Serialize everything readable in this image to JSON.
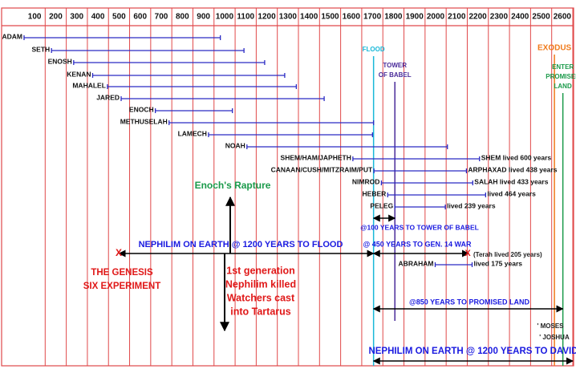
{
  "chart_data": {
    "type": "timeline",
    "xlim": [
      0,
      2600
    ],
    "xticks": [
      100,
      200,
      300,
      400,
      500,
      600,
      700,
      800,
      900,
      1000,
      1100,
      1200,
      1300,
      1400,
      1500,
      1600,
      1700,
      1800,
      1900,
      2000,
      2100,
      2200,
      2300,
      2400,
      2500,
      2600
    ],
    "grid": true,
    "grid_color": "#e0484a",
    "bar_color": "#2b2bc4",
    "lifespans": [
      {
        "name": "ADAM",
        "start": 0,
        "end": 930
      },
      {
        "name": "SETH",
        "start": 130,
        "end": 1042
      },
      {
        "name": "ENOSH",
        "start": 235,
        "end": 1140
      },
      {
        "name": "KENAN",
        "start": 325,
        "end": 1235
      },
      {
        "name": "MAHALEL",
        "start": 395,
        "end": 1290
      },
      {
        "name": "JARED",
        "start": 460,
        "end": 1422
      },
      {
        "name": "ENOCH",
        "start": 622,
        "end": 987
      },
      {
        "name": "METHUSELAH",
        "start": 687,
        "end": 1656
      },
      {
        "name": "LAMECH",
        "start": 874,
        "end": 1651
      },
      {
        "name": "NOAH",
        "start": 1056,
        "end": 2006
      },
      {
        "name": "SHEM/HAM/JAPHETH",
        "start": 1558,
        "end": 2158,
        "note": "SHEM lived 600 years"
      },
      {
        "name": "CANAAN/CUSH/MITZRAIM/PUT",
        "start": 1658,
        "end": 2096,
        "note": "ARPHAXAD lived 438 years"
      },
      {
        "name": "NIMROD",
        "start": 1693,
        "end": 2126,
        "note": "SALAH lived 433 years"
      },
      {
        "name": "HEBER",
        "start": 1723,
        "end": 2187,
        "note": "lived 464 years"
      },
      {
        "name": "PELEG",
        "start": 1757,
        "end": 1996,
        "note": "lived 239 years"
      },
      {
        "name": "ABRAHAM",
        "start": 1948,
        "end": 2123,
        "note": "lived 175 years"
      }
    ],
    "events": [
      {
        "label": [
          "FLOOD"
        ],
        "year": 1656,
        "color": "#19b8d8"
      },
      {
        "label": [
          "TOWER",
          "OF BABEL"
        ],
        "year": 1757,
        "color": "#4a2b9a"
      },
      {
        "label": [
          "EXODUS"
        ],
        "year": 2513,
        "color": "#f07a1a"
      },
      {
        "label": [
          "ENTER",
          "PROMISED",
          "LAND"
        ],
        "year": 2553,
        "color": "#1a9a4a"
      }
    ],
    "spans": [
      {
        "label": "NEPHILIM ON EARTH @ 1200 YEARS TO FLOOD",
        "start": 450,
        "end": 1656
      },
      {
        "label": "@ 450 YEARS TO GEN. 14 WAR",
        "start": 1656,
        "end": 2106
      },
      {
        "label": "@100 YEARS TO TOWER OF BABEL",
        "start": 1656,
        "end": 1757
      },
      {
        "label": "@850 YEARS TO PROMISED LAND",
        "start": 1656,
        "end": 2553
      },
      {
        "label": "NEPHILIM ON EARTH @ 1200 YEARS TO DAVID",
        "start": 1656,
        "end": 2600
      }
    ],
    "span_color": "#1a1ae0",
    "annotations": [
      {
        "text": [
          "Enoch's Rapture"
        ],
        "color": "#1a9a4a"
      },
      {
        "text": [
          "THE GENESIS",
          "SIX EXPERIMENT"
        ],
        "color": "#e01818"
      },
      {
        "text": [
          "1st generation",
          "Nephilim killed",
          "Watchers cast",
          "into Tartarus"
        ],
        "color": "#e01818"
      },
      {
        "text": [
          "X"
        ],
        "color": "#e01818"
      },
      {
        "text": [
          "X"
        ],
        "color": "#e01818"
      },
      {
        "text": [
          "(Terah lived 205 years)"
        ],
        "color": "#222222"
      },
      {
        "text": [
          "' MOSES"
        ],
        "color": "#222222"
      },
      {
        "text": [
          "' JOSHUA"
        ],
        "color": "#222222"
      }
    ]
  }
}
